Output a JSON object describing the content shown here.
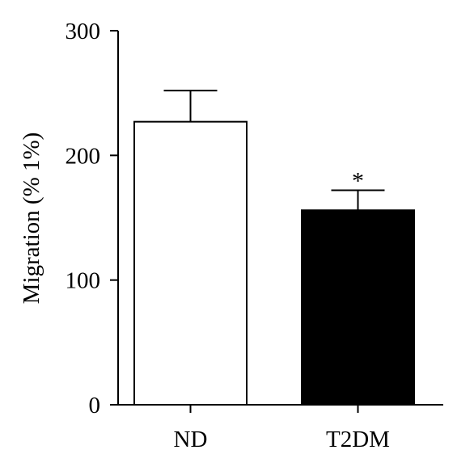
{
  "chart_data": {
    "type": "bar",
    "categories": [
      "ND",
      "T2DM"
    ],
    "values": [
      227,
      156
    ],
    "errors": [
      25,
      16
    ],
    "bar_colors": [
      "#ffffff",
      "#000000"
    ],
    "significance": [
      "",
      "*"
    ],
    "ylabel": "Migration (% 1%)",
    "xlabel": "",
    "title": "",
    "ylim": [
      0,
      300
    ],
    "yticks": [
      0,
      100,
      200,
      300
    ],
    "grid": false,
    "legend": "none"
  }
}
